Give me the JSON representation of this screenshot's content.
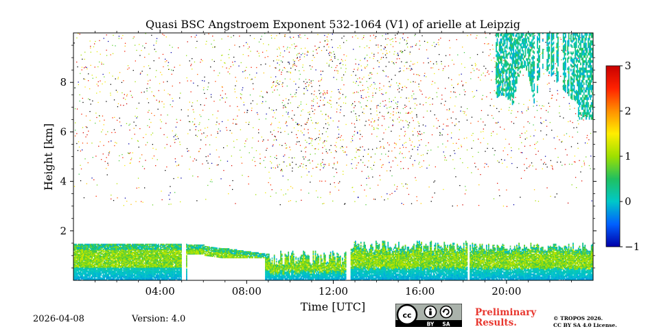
{
  "chart_data": {
    "type": "heatmap",
    "title": "Quasi BSC Angstroem Exponent 532-1064 (V1) of arielle at Leipzig",
    "xlabel": "Time [UTC]",
    "ylabel": "Height [km]",
    "xlim": [
      0,
      24
    ],
    "ylim": [
      0,
      10
    ],
    "x_ticks": [
      4,
      8,
      12,
      16,
      20
    ],
    "x_tick_labels": [
      "04:00",
      "08:00",
      "12:00",
      "16:00",
      "20:00"
    ],
    "y_ticks": [
      2,
      4,
      6,
      8
    ],
    "y_tick_labels": [
      "2",
      "4",
      "6",
      "8"
    ],
    "colorbar": {
      "min": -1,
      "max": 3,
      "ticks": [
        -1,
        0,
        1,
        2,
        3
      ],
      "tick_labels": [
        "−1",
        "0",
        "1",
        "2",
        "3"
      ],
      "colormap": [
        "#0000a8",
        "#0060ff",
        "#00c8c8",
        "#20c060",
        "#9ee000",
        "#ffee00",
        "#ff9000",
        "#ff2200",
        "#c80000"
      ]
    },
    "data_gaps_utc": [
      [
        5.0,
        5.2
      ],
      [
        12.6,
        12.8
      ],
      [
        18.2,
        18.3
      ]
    ],
    "features": {
      "boundary_layer_top_km": 1.5,
      "cirrus_start_utc": 19.5,
      "cirrus_base_km": 6.5,
      "cirrus_top_km": 10
    }
  },
  "footer": {
    "date": "2026-04-08",
    "version": "Version: 4.0",
    "license_badge_text": [
      "BY",
      "SA"
    ],
    "preliminary": [
      "Preliminary",
      "Results."
    ],
    "copyright": [
      "© TROPOS 2026.",
      "CC BY SA 4.0 License."
    ]
  }
}
